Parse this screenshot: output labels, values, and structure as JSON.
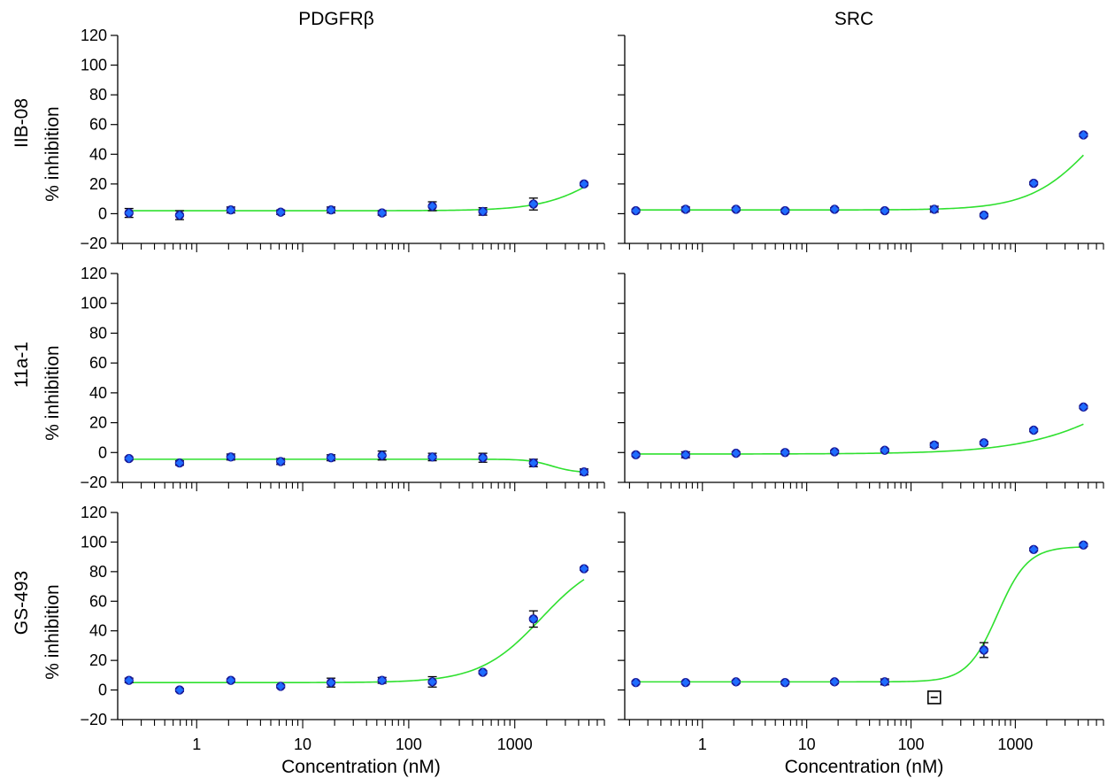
{
  "figure": {
    "column_titles": [
      "PDGFRβ",
      "SRC"
    ],
    "x_label": "Concentration (nM)",
    "y_label": "% inhibition",
    "row_labels": [
      "IIB-08",
      "11a-1",
      "GS-493"
    ]
  },
  "chart_data": [
    {
      "type": "scatter",
      "row": 0,
      "col": 0,
      "title": "PDGFRβ",
      "ylabel": "% inhibition",
      "row_label": "IIB-08",
      "x_scale": "log",
      "xlim": [
        0.18,
        7000
      ],
      "ylim": [
        -20,
        120
      ],
      "yticks": [
        -20,
        0,
        20,
        40,
        60,
        80,
        100,
        120
      ],
      "xtick_labels": [],
      "grid": false,
      "legend": "none",
      "x": [
        0.23,
        0.69,
        2.1,
        6.2,
        18.5,
        56,
        167,
        500,
        1500,
        4500
      ],
      "y": [
        0.5,
        -1,
        2.5,
        1,
        2.5,
        0.5,
        5,
        1.5,
        6.5,
        20
      ],
      "err": [
        3,
        3,
        2,
        1.5,
        2,
        1.5,
        3,
        2.5,
        4,
        1
      ],
      "fit": {
        "bottom": 2,
        "top": 55,
        "logEC50": 3.9,
        "hill": 1.5
      }
    },
    {
      "type": "scatter",
      "row": 0,
      "col": 1,
      "title": "SRC",
      "ylabel": "",
      "row_label": "",
      "x_scale": "log",
      "xlim": [
        0.18,
        7000
      ],
      "ylim": [
        -20,
        120
      ],
      "yticks": [
        -20,
        0,
        20,
        40,
        60,
        80,
        100,
        120
      ],
      "xtick_labels": [],
      "grid": false,
      "legend": "none",
      "x": [
        0.23,
        0.69,
        2.1,
        6.2,
        18.5,
        56,
        167,
        500,
        1500,
        4500
      ],
      "y": [
        2,
        3,
        3,
        2,
        3,
        2,
        3,
        -1,
        20.5,
        53
      ],
      "err": [
        1,
        1.5,
        1,
        1,
        1,
        1,
        2,
        1,
        1,
        1
      ],
      "fit": {
        "bottom": 2.5,
        "top": 95,
        "logEC50": 3.78,
        "hill": 1.4
      }
    },
    {
      "type": "scatter",
      "row": 1,
      "col": 0,
      "title": "",
      "ylabel": "% inhibition",
      "row_label": "11a-1",
      "x_scale": "log",
      "xlim": [
        0.18,
        7000
      ],
      "ylim": [
        -20,
        120
      ],
      "yticks": [
        -20,
        0,
        20,
        40,
        60,
        80,
        100,
        120
      ],
      "xtick_labels": [],
      "grid": false,
      "legend": "none",
      "x": [
        0.23,
        0.69,
        2.1,
        6.2,
        18.5,
        56,
        167,
        500,
        1500,
        4500
      ],
      "y": [
        -4,
        -7,
        -3,
        -6,
        -3.5,
        -2,
        -3,
        -3.5,
        -7,
        -13
      ],
      "err": [
        1,
        1.5,
        2,
        2,
        2,
        3,
        2.5,
        3,
        2.5,
        2
      ],
      "fit": {
        "bottom": -4.5,
        "top": -13.5,
        "logEC50": 3.35,
        "hill": 4
      }
    },
    {
      "type": "scatter",
      "row": 1,
      "col": 1,
      "title": "",
      "ylabel": "",
      "row_label": "",
      "x_scale": "log",
      "xlim": [
        0.18,
        7000
      ],
      "ylim": [
        -20,
        120
      ],
      "yticks": [
        -20,
        0,
        20,
        40,
        60,
        80,
        100,
        120
      ],
      "xtick_labels": [],
      "grid": false,
      "legend": "none",
      "x": [
        0.23,
        0.69,
        2.1,
        6.2,
        18.5,
        56,
        167,
        500,
        1500,
        4500
      ],
      "y": [
        -1.5,
        -1.5,
        -0.5,
        0,
        0.5,
        1.5,
        5,
        6.5,
        15,
        30.5
      ],
      "err": [
        1,
        2,
        1,
        1,
        1,
        1,
        1.5,
        1,
        1,
        1
      ],
      "fit": {
        "bottom": -1,
        "top": 90,
        "logEC50": 4.3,
        "hill": 0.85
      }
    },
    {
      "type": "scatter",
      "row": 2,
      "col": 0,
      "title": "",
      "ylabel": "% inhibition",
      "row_label": "GS-493",
      "x_scale": "log",
      "xlim": [
        0.18,
        7000
      ],
      "ylim": [
        -20,
        120
      ],
      "yticks": [
        -20,
        0,
        20,
        40,
        60,
        80,
        100,
        120
      ],
      "xtick_values": [
        1,
        10,
        100,
        1000
      ],
      "xtick_labels": [
        "1",
        "10",
        "100",
        "1000"
      ],
      "xlabel": "Concentration (nM)",
      "grid": false,
      "legend": "none",
      "x": [
        0.23,
        0.69,
        2.1,
        6.2,
        18.5,
        56,
        167,
        500,
        1500,
        4500
      ],
      "y": [
        6.5,
        0,
        6.5,
        2.5,
        5,
        6.5,
        5.5,
        12,
        48,
        82
      ],
      "err": [
        1.5,
        1,
        1,
        1,
        3,
        2,
        3.5,
        1,
        5.5,
        1
      ],
      "fit": {
        "bottom": 5,
        "top": 92,
        "logEC50": 3.25,
        "hill": 1.5
      }
    },
    {
      "type": "scatter",
      "row": 2,
      "col": 1,
      "title": "",
      "ylabel": "",
      "row_label": "",
      "x_scale": "log",
      "xlim": [
        0.18,
        7000
      ],
      "ylim": [
        -20,
        120
      ],
      "yticks": [
        -20,
        0,
        20,
        40,
        60,
        80,
        100,
        120
      ],
      "xtick_values": [
        1,
        10,
        100,
        1000
      ],
      "xtick_labels": [
        "1",
        "10",
        "100",
        "1000"
      ],
      "xlabel": "Concentration (nM)",
      "grid": false,
      "legend": "none",
      "x": [
        0.23,
        0.69,
        2.1,
        6.2,
        18.5,
        56,
        167,
        500,
        1500,
        4500
      ],
      "y": [
        5,
        5,
        5.5,
        5,
        5.5,
        5.5,
        -5,
        27,
        95,
        98
      ],
      "err": [
        1,
        1,
        1,
        1,
        1,
        2,
        3,
        5,
        1,
        1
      ],
      "excluded_index": 6,
      "fit": {
        "bottom": 5.5,
        "top": 97,
        "logEC50": 2.83,
        "hill": 3
      }
    }
  ]
}
